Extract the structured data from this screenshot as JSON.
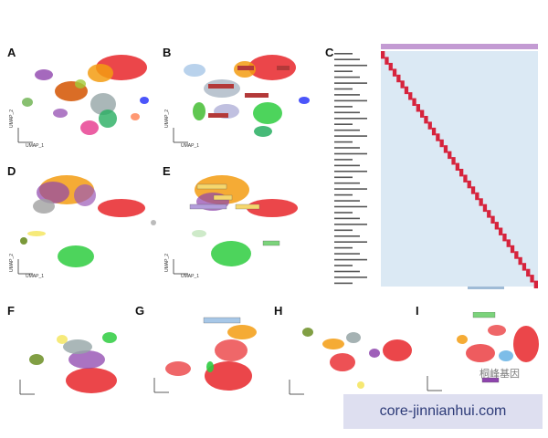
{
  "panels": {
    "a": {
      "label": "A",
      "axes": {
        "y": "UMAP_2",
        "x": "UMAP_1"
      }
    },
    "b": {
      "label": "B",
      "axes": {
        "y": "UMAP_2",
        "x": "UMAP_1"
      }
    },
    "c": {
      "label": "C"
    },
    "d": {
      "label": "D",
      "axes": {
        "y": "UMAP_2",
        "x": "UMAP_1"
      }
    },
    "e": {
      "label": "E",
      "axes": {
        "y": "UMAP_2",
        "x": "UMAP_1"
      }
    },
    "f": {
      "label": "F"
    },
    "g": {
      "label": "G"
    },
    "h": {
      "label": "H"
    },
    "i": {
      "label": "I"
    }
  },
  "watermark": {
    "domain": "core-jinnianhui.com",
    "cn": "桐峰基因"
  },
  "colors": {
    "red": "#e8262a",
    "orange": "#f39c12",
    "green": "#2ecc40",
    "purple": "#8e44ad",
    "blue": "#5dade2",
    "olive": "#8a8f2a",
    "grey": "#9a9a9a"
  }
}
